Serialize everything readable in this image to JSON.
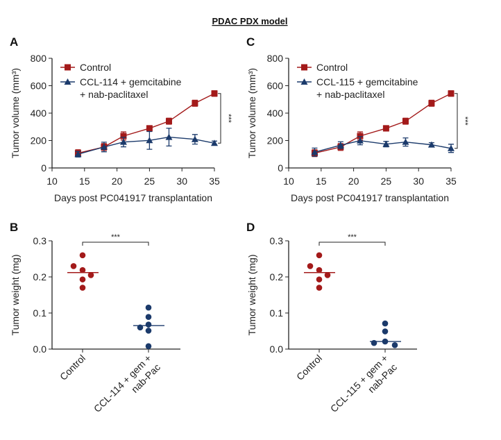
{
  "figure_title": "PDAC PDX model",
  "colors": {
    "control": "#a31a1a",
    "treatment": "#1b3a6b"
  },
  "chart_data": [
    {
      "panel": "A",
      "type": "line",
      "xlabel": "Days post PC041917 transplantation",
      "ylabel": "Tumor volume (mm³)",
      "xlim": [
        10,
        35
      ],
      "ylim": [
        0,
        800
      ],
      "xticks": [
        "10",
        "15",
        "20",
        "25",
        "30",
        "35"
      ],
      "yticks": [
        "0",
        "200",
        "400",
        "600",
        "800"
      ],
      "legend_position": "top-left",
      "x": [
        14,
        18,
        21,
        25,
        28,
        32,
        35
      ],
      "series": [
        {
          "name": "Control",
          "marker": "square",
          "values": [
            108,
            153,
            233,
            289,
            341,
            472,
            543
          ],
          "errors": [
            25,
            25,
            30,
            20,
            22,
            22,
            20
          ]
        },
        {
          "name": "CCL-114 + gemcitabine",
          "name_line2": "+ nab-paclitaxel",
          "marker": "triangle",
          "values": [
            100,
            153,
            189,
            201,
            225,
            209,
            181
          ],
          "errors": [
            20,
            35,
            35,
            65,
            65,
            35,
            15
          ]
        }
      ],
      "significance": "***"
    },
    {
      "panel": "C",
      "type": "line",
      "xlabel": "Days post PC041917 transplantation",
      "ylabel": "Tumor volume (mm³)",
      "xlim": [
        10,
        35
      ],
      "ylim": [
        0,
        800
      ],
      "xticks": [
        "10",
        "15",
        "20",
        "25",
        "30",
        "35"
      ],
      "yticks": [
        "0",
        "200",
        "400",
        "600",
        "800"
      ],
      "legend_position": "top-left",
      "x": [
        14,
        18,
        21,
        25,
        28,
        32,
        35
      ],
      "series": [
        {
          "name": "Control",
          "marker": "square",
          "values": [
            108,
            153,
            233,
            289,
            341,
            472,
            543
          ],
          "errors": [
            25,
            25,
            30,
            20,
            22,
            22,
            20
          ]
        },
        {
          "name": "CCL-115 + gemcitabine",
          "name_line2": "+ nab-paclitaxel",
          "marker": "triangle",
          "values": [
            115,
            166,
            199,
            174,
            189,
            169,
            143
          ],
          "errors": [
            30,
            25,
            30,
            20,
            30,
            15,
            30
          ]
        }
      ],
      "significance": "***"
    },
    {
      "panel": "B",
      "type": "scatter",
      "ylabel": "Tumor weight (mg)",
      "ylim": [
        0,
        0.3
      ],
      "yticks": [
        "0.0",
        "0.1",
        "0.2",
        "0.3"
      ],
      "categories": [
        {
          "label": "Control",
          "values": [
            0.26,
            0.23,
            0.219,
            0.205,
            0.193,
            0.17
          ],
          "median": 0.212
        },
        {
          "label": "CCL-114 + gem +",
          "label_line2": "nab-Pac",
          "values": [
            0.115,
            0.089,
            0.068,
            0.06,
            0.051,
            0.008
          ],
          "median": 0.065
        }
      ],
      "significance": "***"
    },
    {
      "panel": "D",
      "type": "scatter",
      "ylabel": "Tumor weight (mg)",
      "ylim": [
        0,
        0.3
      ],
      "yticks": [
        "0.0",
        "0.1",
        "0.2",
        "0.3"
      ],
      "categories": [
        {
          "label": "Control",
          "values": [
            0.26,
            0.23,
            0.219,
            0.205,
            0.193,
            0.17
          ],
          "median": 0.212
        },
        {
          "label": "CCL-115 + gem +",
          "label_line2": "nab-Pac",
          "values": [
            0.071,
            0.049,
            0.021,
            0.017,
            0.011
          ],
          "median": 0.021
        }
      ],
      "significance": "***"
    }
  ]
}
